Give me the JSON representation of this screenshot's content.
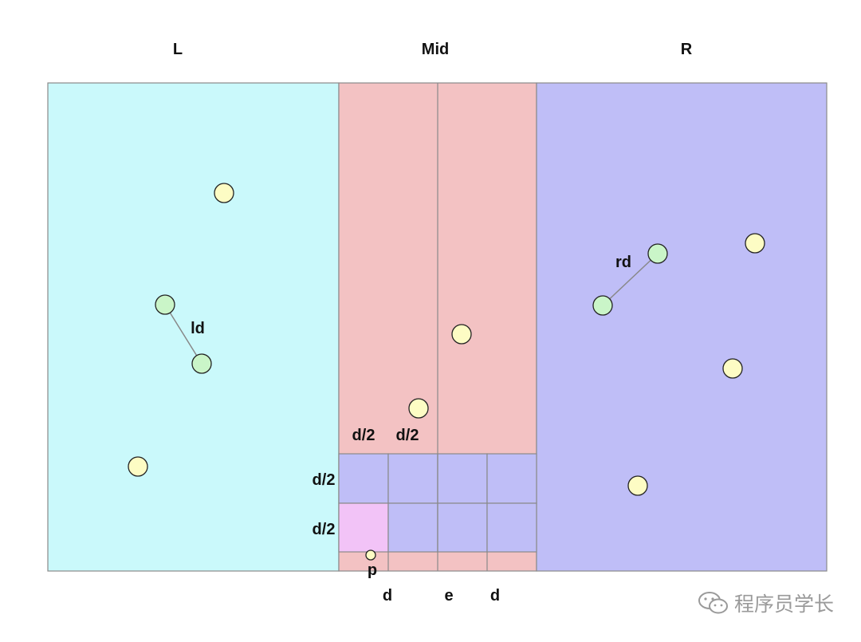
{
  "regions": {
    "left_label": "L",
    "mid_label": "Mid",
    "right_label": "R"
  },
  "labels": {
    "ld": "ld",
    "rd": "rd",
    "d_half_1": "d/2",
    "d_half_2": "d/2",
    "d_half_side_1": "d/2",
    "d_half_side_2": "d/2",
    "p": "p",
    "d_left": "d",
    "e": "e",
    "d_right": "d"
  },
  "colors": {
    "left_region": "#caf9fb",
    "mid_region": "#f3c2c3",
    "right_region": "#bfbef7",
    "grid_cell": "#bfbef7",
    "highlight_cell": "#f2c3f7",
    "point_default": "#fdfcc4",
    "point_pair": "#caf5c8",
    "border": "#8a8a8a"
  },
  "icons": {
    "watermark_icon": "wechat-icon"
  },
  "watermark": "程序员学长"
}
